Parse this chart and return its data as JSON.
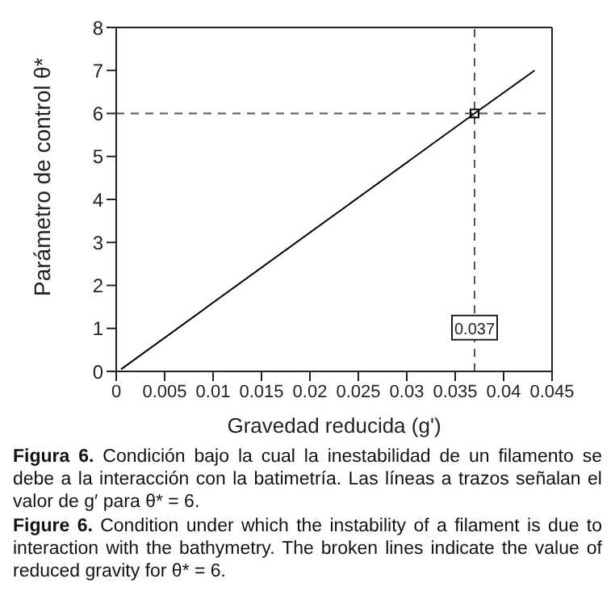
{
  "chart_data": {
    "type": "line",
    "xlabel": "Gravedad reducida (g')",
    "ylabel": "Parámetro de control θ*",
    "xlim": [
      0,
      0.045
    ],
    "xticks": [
      0,
      0.005,
      0.01,
      0.015,
      0.02,
      0.025,
      0.03,
      0.035,
      0.04,
      0.045
    ],
    "ylim": [
      0,
      8
    ],
    "yticks": [
      0,
      1,
      2,
      3,
      4,
      5,
      6,
      7,
      8
    ],
    "series": [
      {
        "color": "#000000",
        "x": [
          0.0005,
          0.037,
          0.0432
        ],
        "values": [
          0.05,
          6,
          7
        ],
        "marker": "none",
        "line_style": "solid"
      },
      {
        "type": "scatter",
        "color": "#000000",
        "x": [
          0.037
        ],
        "values": [
          6
        ],
        "marker": "square"
      }
    ],
    "ref_lines": [
      {
        "axis": "x",
        "value": 0.037,
        "color": "#555555",
        "line_style": "dashed"
      },
      {
        "axis": "y",
        "value": 6,
        "color": "#555555",
        "line_style": "dashed"
      }
    ],
    "annotations": [
      {
        "text": "0.037",
        "x": 0.037,
        "y": 1
      },
      "Figura 6. Condición bajo la cual la inestabilidad de un filamento se debe a la interacción con la batimetría. Las líneas a trazos señalan el valor de g′ para θ* = 6.",
      "Figure 6. Condition under which the instability of a filament is due to interaction with the bathymetry. The broken lines indicate the value of reduced gravity for θ* = 6."
    ],
    "grid": false,
    "legend": false
  }
}
